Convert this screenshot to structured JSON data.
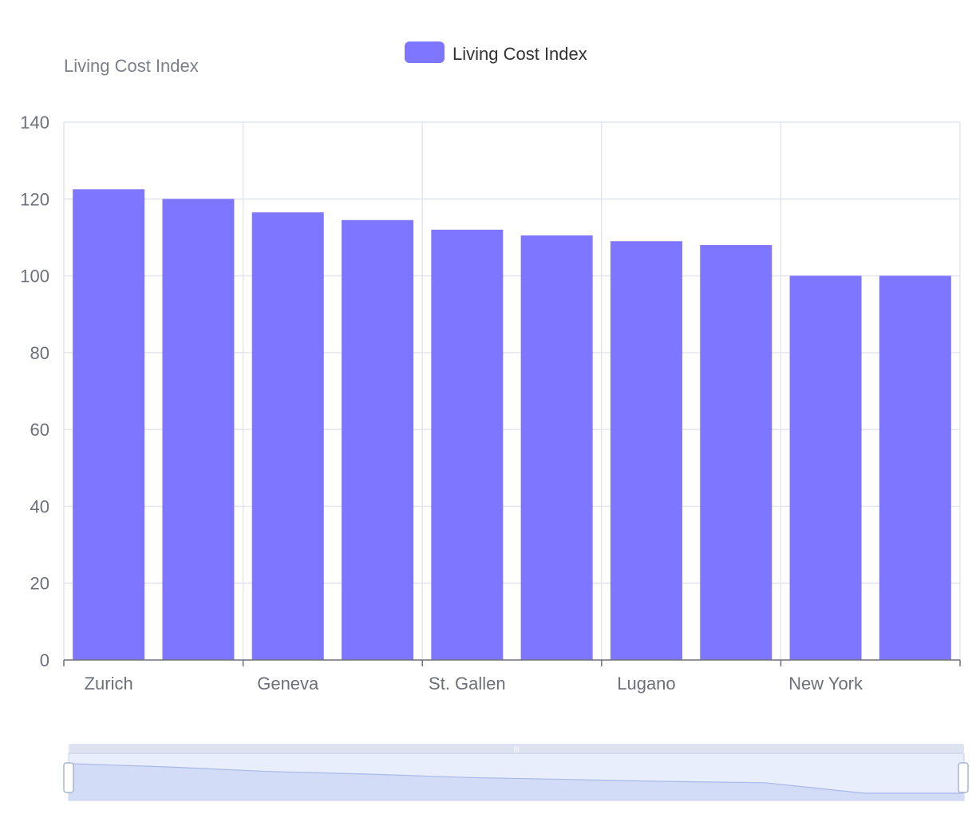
{
  "legend": {
    "label": "Living Cost Index",
    "color": "#7f76ff"
  },
  "chart_data": {
    "type": "bar",
    "title": "",
    "ylabel": "Living Cost Index",
    "xlabel": "",
    "categories": [
      "Zurich",
      "",
      "Geneva",
      "",
      "St. Gallen",
      "",
      "Lugano",
      "",
      "New York",
      ""
    ],
    "x_tick_labels": [
      "Zurich",
      "Geneva",
      "St. Gallen",
      "Lugano",
      "New York"
    ],
    "series": [
      {
        "name": "Living Cost Index",
        "values": [
          122.5,
          120,
          116.5,
          114.5,
          112,
          110.5,
          109,
          108,
          100,
          100
        ]
      }
    ],
    "ylim": [
      0,
      140
    ],
    "y_ticks": [
      0,
      20,
      40,
      60,
      80,
      100,
      120,
      140
    ],
    "grid": true,
    "legend_position": "top-center",
    "bar_color": "#7f76ff",
    "data_zoom": {
      "start": 0,
      "end": 100
    }
  }
}
